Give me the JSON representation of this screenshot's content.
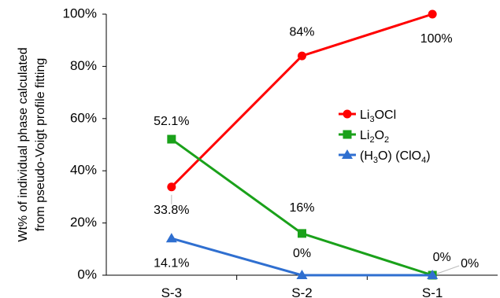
{
  "chart_data": {
    "type": "line",
    "title": "",
    "xlabel": "",
    "ylabel_lines": [
      "Wt% of individual phase calculated",
      "from pseudo-Voigt profile fitting"
    ],
    "categories": [
      "S-3",
      "S-2",
      "S-1"
    ],
    "ylim": [
      0,
      100
    ],
    "yticks": [
      "0%",
      "20%",
      "40%",
      "60%",
      "80%",
      "100%"
    ],
    "ytick_values": [
      0,
      20,
      40,
      60,
      80,
      100
    ],
    "grid": false,
    "legend_position": "right",
    "series": [
      {
        "name": "Li3OCl",
        "legend_parts": [
          [
            "Li",
            ""
          ],
          [
            "3",
            "sub"
          ],
          [
            "OCl",
            ""
          ]
        ],
        "color": "#ff0000",
        "marker": "circle",
        "values": [
          33.8,
          84,
          100
        ],
        "labels": [
          "33.8%",
          "84%",
          "100%"
        ]
      },
      {
        "name": "Li2O2",
        "legend_parts": [
          [
            "Li",
            ""
          ],
          [
            "2",
            "sub"
          ],
          [
            "O",
            ""
          ],
          [
            "2",
            "sub"
          ]
        ],
        "color": "#1aa11a",
        "marker": "square",
        "values": [
          52.1,
          16,
          0
        ],
        "labels": [
          "52.1%",
          "16%",
          "0%"
        ]
      },
      {
        "name": "(H3O) (ClO4)",
        "legend_parts": [
          [
            "(H",
            ""
          ],
          [
            "3",
            "sub"
          ],
          [
            "O) (ClO",
            ""
          ],
          [
            "4",
            "sub"
          ],
          [
            ")",
            ""
          ]
        ],
        "color": "#2f6fd0",
        "marker": "triangle",
        "values": [
          14.1,
          0,
          0
        ],
        "labels": [
          "14.1%",
          "0%",
          "0%"
        ]
      }
    ]
  }
}
